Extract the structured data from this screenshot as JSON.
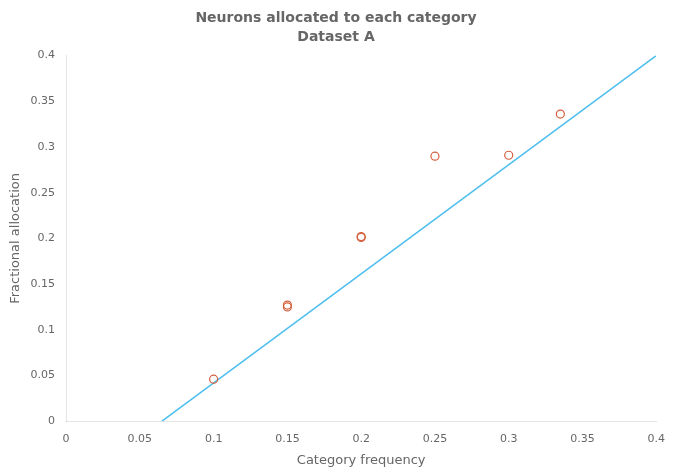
{
  "chart_data": {
    "type": "scatter",
    "title": "Neurons allocated to each category",
    "subtitle": "Dataset A",
    "xlabel": "Category frequency",
    "ylabel": "Fractional allocation",
    "series": [
      {
        "type": "line",
        "color": "#4dbeee",
        "line_style": "solid",
        "x": [
          0.065,
          0.4
        ],
        "values": [
          0.0,
          0.4
        ]
      },
      {
        "type": "scatter",
        "color": "#d45f3c",
        "marker": "circle",
        "x": [
          0.1,
          0.15,
          0.15,
          0.2,
          0.2,
          0.25,
          0.3,
          0.335
        ],
        "values": [
          0.046,
          0.125,
          0.127,
          0.201,
          0.202,
          0.29,
          0.291,
          0.336
        ]
      }
    ],
    "xlim": [
      0,
      0.4
    ],
    "ylim": [
      0,
      0.4
    ],
    "xticks": [
      0,
      0.05,
      0.1,
      0.15,
      0.2,
      0.25,
      0.3,
      0.35,
      0.4
    ],
    "yticks": [
      0,
      0.05,
      0.1,
      0.15,
      0.2,
      0.25,
      0.3,
      0.35,
      0.4
    ],
    "grid": false
  }
}
